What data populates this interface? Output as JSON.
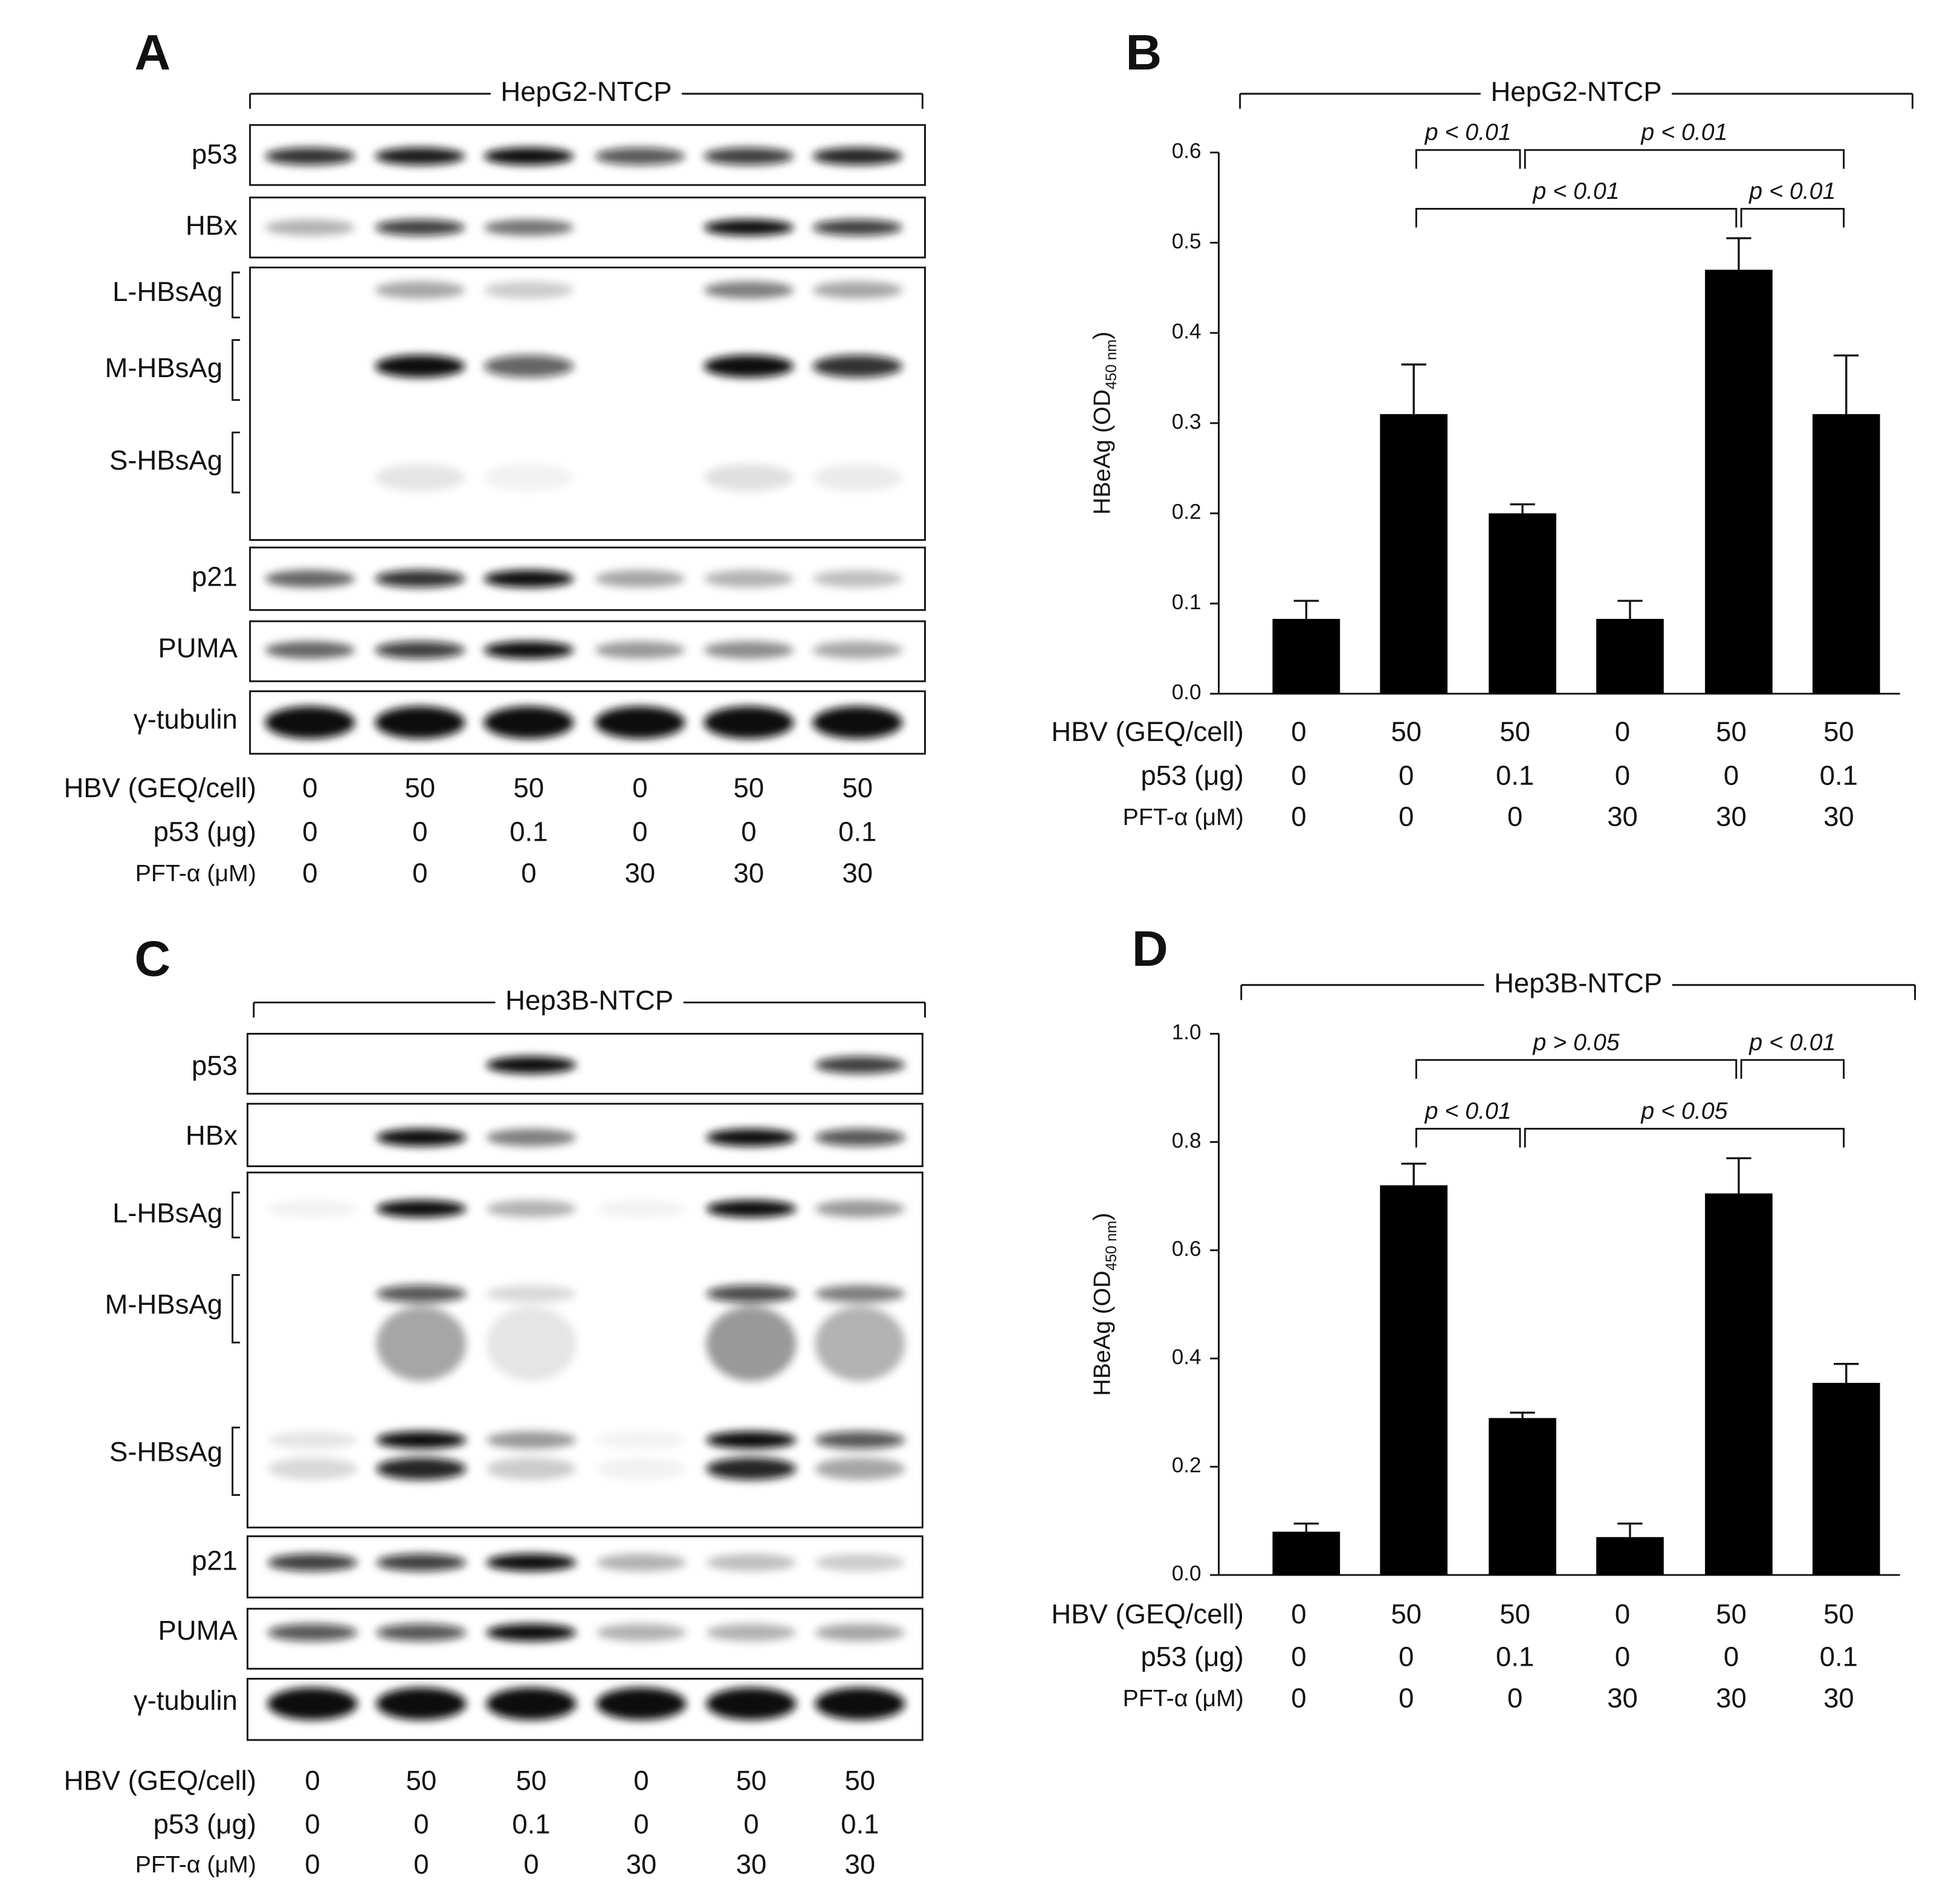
{
  "blots": [
    {
      "label": "A",
      "title": "HepG2-NTCP",
      "rows": [
        "p53",
        "HBx",
        "L-HBsAg",
        "M-HBsAg",
        "S-HBsAg",
        "p21",
        "PUMA",
        "γ-tubulin"
      ],
      "conditions": [
        {
          "label": "HBV (GEQ/cell)",
          "values": [
            0,
            50,
            50,
            0,
            50,
            50
          ]
        },
        {
          "label": "p53 (μg)",
          "values": [
            0,
            0,
            0.1,
            0,
            0,
            0.1
          ]
        },
        {
          "label": "PFT-α (μM)",
          "values": [
            0,
            0,
            0,
            30,
            30,
            30
          ]
        }
      ]
    },
    {
      "label": "C",
      "title": "Hep3B-NTCP",
      "rows": [
        "p53",
        "HBx",
        "L-HBsAg",
        "M-HBsAg",
        "S-HBsAg",
        "p21",
        "PUMA",
        "γ-tubulin"
      ],
      "conditions": [
        {
          "label": "HBV (GEQ/cell)",
          "values": [
            0,
            50,
            50,
            0,
            50,
            50
          ]
        },
        {
          "label": "p53 (μg)",
          "values": [
            0,
            0,
            0.1,
            0,
            0,
            0.1
          ]
        },
        {
          "label": "PFT-α (μM)",
          "values": [
            0,
            0,
            0,
            30,
            30,
            30
          ]
        }
      ]
    }
  ],
  "chart_data": [
    {
      "type": "bar",
      "label": "B",
      "title": "HepG2-NTCP",
      "y_label": [
        "HBeAg (OD",
        "450 nm",
        ")"
      ],
      "values": [
        0.083,
        0.31,
        0.2,
        0.083,
        0.47,
        0.31
      ],
      "errors": [
        0.02,
        0.055,
        0.01,
        0.02,
        0.035,
        0.065
      ],
      "color": "#000000",
      "ylim": [
        0,
        0.6
      ],
      "yticks": [
        {
          "value": 0,
          "label": "0.0"
        },
        0.1,
        0.2,
        0.3,
        0.4,
        0.5,
        0.6
      ],
      "conditions": [
        {
          "label": "HBV (GEQ/cell)",
          "values": [
            0,
            50,
            50,
            0,
            50,
            50
          ]
        },
        {
          "label": "p53 (μg)",
          "values": [
            0,
            0,
            0.1,
            0,
            0,
            0.1
          ]
        },
        {
          "label": "PFT-α (μM)",
          "values": [
            0,
            0,
            0,
            30,
            30,
            30
          ]
        }
      ],
      "comparisons": [
        [
          {
            "from": 1,
            "to": 2,
            "label": "p < 0.01"
          },
          {
            "from": 2,
            "to": 5,
            "label": "p < 0.01"
          }
        ],
        [
          {
            "from": 1,
            "to": 4,
            "label": "p < 0.01"
          },
          {
            "from": 4,
            "to": 5,
            "label": "p < 0.01"
          }
        ]
      ]
    },
    {
      "type": "bar",
      "label": "D",
      "title": "Hep3B-NTCP",
      "y_label": [
        "HBeAg (OD",
        "450 nm",
        ")"
      ],
      "values": [
        0.08,
        0.72,
        0.29,
        0.07,
        0.705,
        0.355
      ],
      "errors": [
        0.015,
        0.04,
        0.01,
        0.025,
        0.065,
        0.035
      ],
      "color": "#000000",
      "ylim": [
        0,
        1
      ],
      "yticks": [
        {
          "value": 0,
          "label": "0.0"
        },
        0.2,
        0.4,
        0.6,
        0.8,
        {
          "value": 1,
          "label": "1.0"
        }
      ],
      "conditions": [
        {
          "label": "HBV (GEQ/cell)",
          "values": [
            0,
            50,
            50,
            0,
            50,
            50
          ]
        },
        {
          "label": "p53 (μg)",
          "values": [
            0,
            0,
            0.1,
            0,
            0,
            0.1
          ]
        },
        {
          "label": "PFT-α (μM)",
          "values": [
            0,
            0,
            0,
            30,
            30,
            30
          ]
        }
      ],
      "comparisons": [
        [
          {
            "from": 1,
            "to": 4,
            "label": "p > 0.05"
          },
          {
            "from": 4,
            "to": 5,
            "label": "p < 0.01"
          }
        ],
        [
          {
            "from": 1,
            "to": 2,
            "label": "p < 0.01"
          },
          {
            "from": 2,
            "to": 5,
            "label": "p < 0.05"
          }
        ]
      ]
    }
  ]
}
